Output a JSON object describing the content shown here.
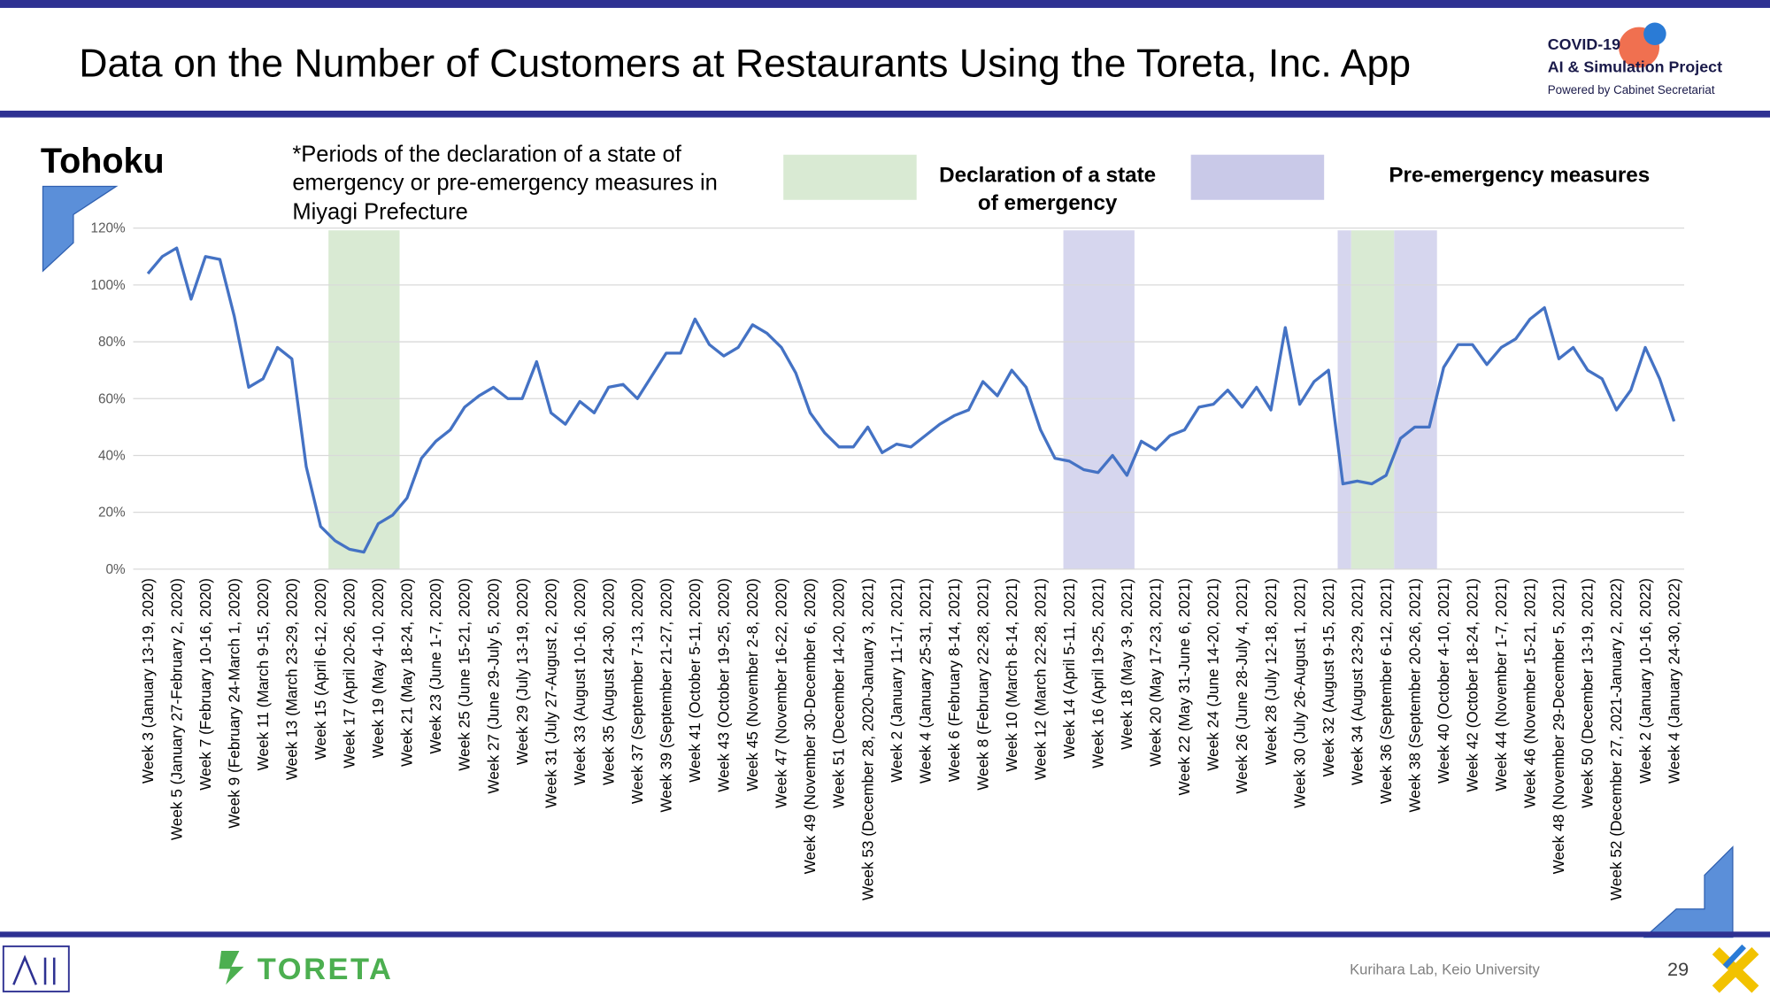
{
  "header": {
    "title": "Data on the Number of Customers at Restaurants Using the Toreta, Inc. App",
    "logo_line1": "COVID-19",
    "logo_line2": "AI & Simulation Project",
    "logo_line3": "Powered by Cabinet Secretariat"
  },
  "region": "Tohoku",
  "note": [
    "*Periods of the declaration of a state of",
    "emergency or pre-emergency measures in",
    "Miyagi Prefecture"
  ],
  "legend": {
    "emergency": [
      "Declaration of a state",
      "of emergency"
    ],
    "pre_emergency": "Pre-emergency measures"
  },
  "footer": {
    "brand": "TORETA",
    "credit": "Kurihara Lab, Keio University",
    "page": "29"
  },
  "chart_data": {
    "type": "line",
    "color": "#4472c4",
    "grid": true,
    "ylim": [
      0,
      120
    ],
    "yticks": [
      {
        "value": 0,
        "label": "0%"
      },
      {
        "value": 20,
        "label": "20%"
      },
      {
        "value": 40,
        "label": "40%"
      },
      {
        "value": 60,
        "label": "60%"
      },
      {
        "value": 80,
        "label": "80%"
      },
      {
        "value": 100,
        "label": "100%"
      },
      {
        "value": 120,
        "label": "120%"
      }
    ],
    "categories": [
      "Week 3 (January 13-19, 2020)",
      null,
      "Week 5 (January 27-February 2, 2020)",
      null,
      "Week 7 (February 10-16, 2020)",
      null,
      "Week 9 (February 24-March 1, 2020)",
      null,
      "Week 11 (March 9-15, 2020)",
      null,
      "Week 13 (March 23-29, 2020)",
      null,
      "Week 15 (April 6-12, 2020)",
      null,
      "Week 17 (April 20-26, 2020)",
      null,
      "Week 19 (May 4-10, 2020)",
      null,
      "Week 21 (May 18-24, 2020)",
      null,
      "Week 23 (June 1-7, 2020)",
      null,
      "Week 25 (June 15-21, 2020)",
      null,
      "Week 27 (June 29-July 5, 2020)",
      null,
      "Week 29 (July 13-19, 2020)",
      null,
      "Week 31 (July 27-August 2, 2020)",
      null,
      "Week 33 (August 10-16, 2020)",
      null,
      "Week 35 (August 24-30, 2020)",
      null,
      "Week 37 (September 7-13, 2020)",
      null,
      "Week 39 (September 21-27, 2020)",
      null,
      "Week 41 (October 5-11, 2020)",
      null,
      "Week 43 (October 19-25, 2020)",
      null,
      "Week 45 (November 2-8, 2020)",
      null,
      "Week 47 (November 16-22, 2020)",
      null,
      "Week 49 (November 30-December 6, 2020)",
      null,
      "Week 51 (December 14-20, 2020)",
      null,
      "Week 53 (December 28, 2020-January 3, 2021)",
      null,
      "Week 2 (January 11-17, 2021)",
      null,
      "Week 4 (January 25-31, 2021)",
      null,
      "Week 6 (February 8-14, 2021)",
      null,
      "Week 8 (February 22-28, 2021)",
      null,
      "Week 10 (March 8-14, 2021)",
      null,
      "Week 12 (March 22-28, 2021)",
      null,
      "Week 14 (April 5-11, 2021)",
      null,
      "Week 16 (April 19-25, 2021)",
      null,
      "Week 18 (May 3-9, 2021)",
      null,
      "Week 20 (May 17-23, 2021)",
      null,
      "Week 22 (May 31-June 6, 2021)",
      null,
      "Week 24 (June 14-20, 2021)",
      null,
      "Week 26 (June 28-July 4, 2021)",
      null,
      "Week 28 (July 12-18, 2021)",
      null,
      "Week 30 (July 26-August 1, 2021)",
      null,
      "Week 32 (August 9-15, 2021)",
      null,
      "Week 34 (August 23-29, 2021)",
      null,
      "Week 36 (September 6-12, 2021)",
      null,
      "Week 38 (September 20-26, 2021)",
      null,
      "Week 40 (October 4-10, 2021)",
      null,
      "Week 42 (October 18-24, 2021)",
      null,
      "Week 44 (November 1-7, 2021)",
      null,
      "Week 46 (November 15-21, 2021)",
      null,
      "Week 48 (November 29-December 5, 2021)",
      null,
      "Week 50 (December 13-19, 2021)",
      null,
      "Week 52 (December 27, 2021-January 2, 2022)",
      null,
      "Week 2 (January 10-16, 2022)",
      null,
      "Week 4 (January 24-30, 2022)"
    ],
    "values": [
      104,
      110,
      113,
      95,
      110,
      109,
      89,
      64,
      67,
      78,
      74,
      36,
      15,
      10,
      7,
      6,
      16,
      19,
      25,
      39,
      45,
      49,
      57,
      61,
      64,
      60,
      60,
      73,
      55,
      51,
      59,
      55,
      64,
      65,
      60,
      68,
      76,
      76,
      88,
      79,
      75,
      78,
      86,
      83,
      78,
      69,
      55,
      48,
      43,
      43,
      50,
      41,
      44,
      43,
      47,
      51,
      54,
      56,
      66,
      61,
      70,
      64,
      49,
      39,
      38,
      35,
      34,
      40,
      33,
      45,
      42,
      47,
      49,
      57,
      58,
      63,
      57,
      64,
      56,
      85,
      58,
      66,
      70,
      30,
      31,
      30,
      33,
      46,
      50,
      50,
      71,
      79,
      79,
      72,
      78,
      81,
      88,
      92,
      74,
      78,
      70,
      67,
      56,
      63,
      78,
      67,
      52
    ]
  }
}
